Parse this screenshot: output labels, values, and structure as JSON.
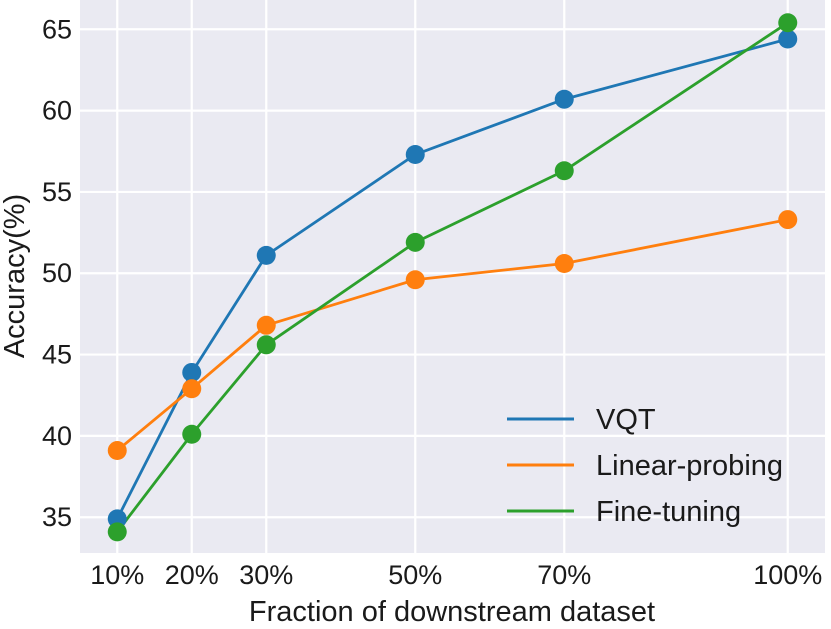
{
  "chart_data": {
    "type": "line",
    "title": "",
    "xlabel": "Fraction of downstream dataset",
    "ylabel": "Accuracy(%)",
    "x": [
      10,
      20,
      30,
      50,
      70,
      100
    ],
    "x_tick_labels": [
      "10%",
      "20%",
      "30%",
      "50%",
      "70%",
      "100%"
    ],
    "xlim": [
      5,
      105
    ],
    "ylim": [
      32.8,
      66.8
    ],
    "y_ticks": [
      35,
      40,
      45,
      50,
      55,
      60,
      65
    ],
    "y_tick_labels": [
      "35",
      "40",
      "45",
      "50",
      "55",
      "60",
      "65"
    ],
    "grid": true,
    "legend_position": "bottom-right",
    "series": [
      {
        "name": "VQT",
        "color": "#1f77b4",
        "values": [
          34.9,
          43.9,
          51.1,
          57.3,
          60.7,
          64.4
        ]
      },
      {
        "name": "Linear-probing",
        "color": "#ff7f0e",
        "values": [
          39.1,
          42.9,
          46.8,
          49.6,
          50.6,
          53.3
        ]
      },
      {
        "name": "Fine-tuning",
        "color": "#2ca02c",
        "values": [
          34.1,
          40.1,
          45.6,
          51.9,
          56.3,
          65.4
        ]
      }
    ]
  }
}
